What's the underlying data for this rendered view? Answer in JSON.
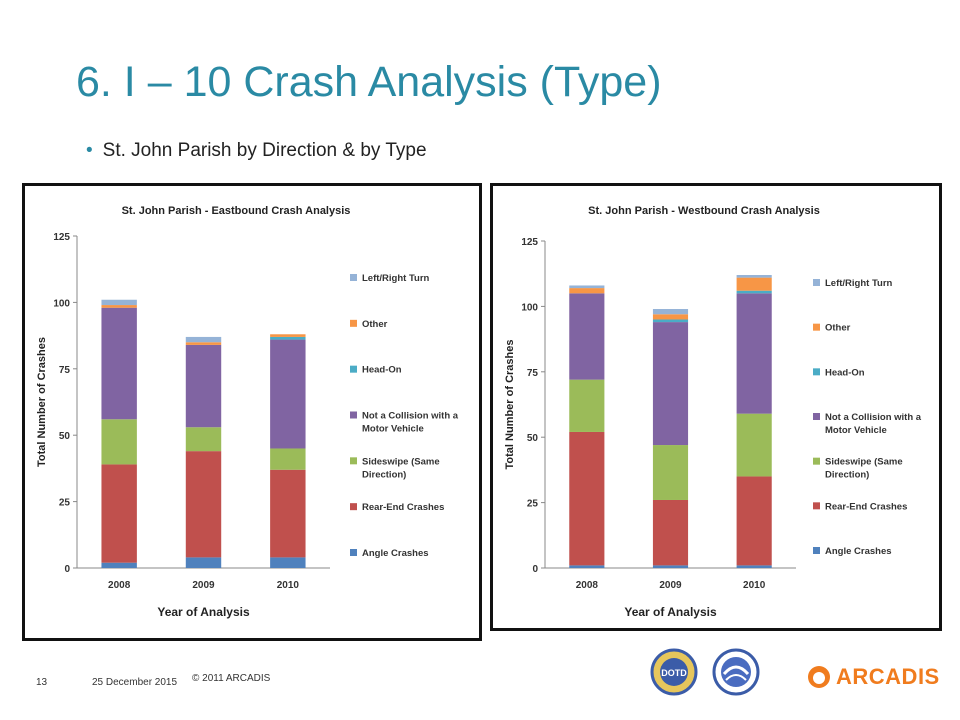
{
  "slide": {
    "title": "6. I – 10 Crash Analysis (Type)",
    "bullet": "St. John Parish by Direction & by Type",
    "page_number": "13",
    "date": "25 December 2015",
    "copyright": "© 2011 ARCADIS",
    "logo_text": "ARCADIS",
    "logo_dotd": "DOTD",
    "accent_color": "#2a8aa4"
  },
  "chart_data": [
    {
      "type": "bar",
      "stacked": true,
      "title": "St. John Parish - Eastbound Crash Analysis",
      "xlabel": "Year of Analysis",
      "ylabel": "Total Number of Crashes",
      "categories": [
        "2008",
        "2009",
        "2010"
      ],
      "ylim": [
        0,
        125
      ],
      "yticks": [
        "0",
        "25",
        "50",
        "75",
        "100",
        "125"
      ],
      "legend_position": "right",
      "grid": false,
      "series": [
        {
          "name": "Angle Crashes",
          "color": "#4f81bd",
          "values": [
            2,
            4,
            4
          ]
        },
        {
          "name": "Rear-End Crashes",
          "color": "#c0504d",
          "values": [
            37,
            40,
            33
          ]
        },
        {
          "name": "Sideswipe (Same Direction)",
          "color": "#9bbb59",
          "values": [
            17,
            9,
            8
          ]
        },
        {
          "name": "Not a Collision with a Motor Vehicle",
          "color": "#8064a2",
          "values": [
            42,
            31,
            41
          ]
        },
        {
          "name": "Head-On",
          "color": "#4bacc6",
          "values": [
            0,
            0,
            1
          ]
        },
        {
          "name": "Other",
          "color": "#f79646",
          "values": [
            1,
            1,
            1
          ]
        },
        {
          "name": "Left/Right Turn",
          "color": "#95b3d7",
          "values": [
            2,
            2,
            0
          ]
        }
      ]
    },
    {
      "type": "bar",
      "stacked": true,
      "title": "St. John Parish - Westbound Crash Analysis",
      "xlabel": "Year of Analysis",
      "ylabel": "Total Number of Crashes",
      "categories": [
        "2008",
        "2009",
        "2010"
      ],
      "ylim": [
        0,
        125
      ],
      "yticks": [
        "0",
        "25",
        "50",
        "75",
        "100",
        "125"
      ],
      "legend_position": "right",
      "grid": false,
      "series": [
        {
          "name": "Angle Crashes",
          "color": "#4f81bd",
          "values": [
            1,
            1,
            1
          ]
        },
        {
          "name": "Rear-End Crashes",
          "color": "#c0504d",
          "values": [
            51,
            25,
            34
          ]
        },
        {
          "name": "Sideswipe (Same Direction)",
          "color": "#9bbb59",
          "values": [
            20,
            21,
            24
          ]
        },
        {
          "name": "Not a Collision with a Motor Vehicle",
          "color": "#8064a2",
          "values": [
            33,
            47,
            46
          ]
        },
        {
          "name": "Head-On",
          "color": "#4bacc6",
          "values": [
            0,
            1,
            1
          ]
        },
        {
          "name": "Other",
          "color": "#f79646",
          "values": [
            2,
            2,
            5
          ]
        },
        {
          "name": "Left/Right Turn",
          "color": "#95b3d7",
          "values": [
            1,
            2,
            1
          ]
        }
      ]
    }
  ]
}
